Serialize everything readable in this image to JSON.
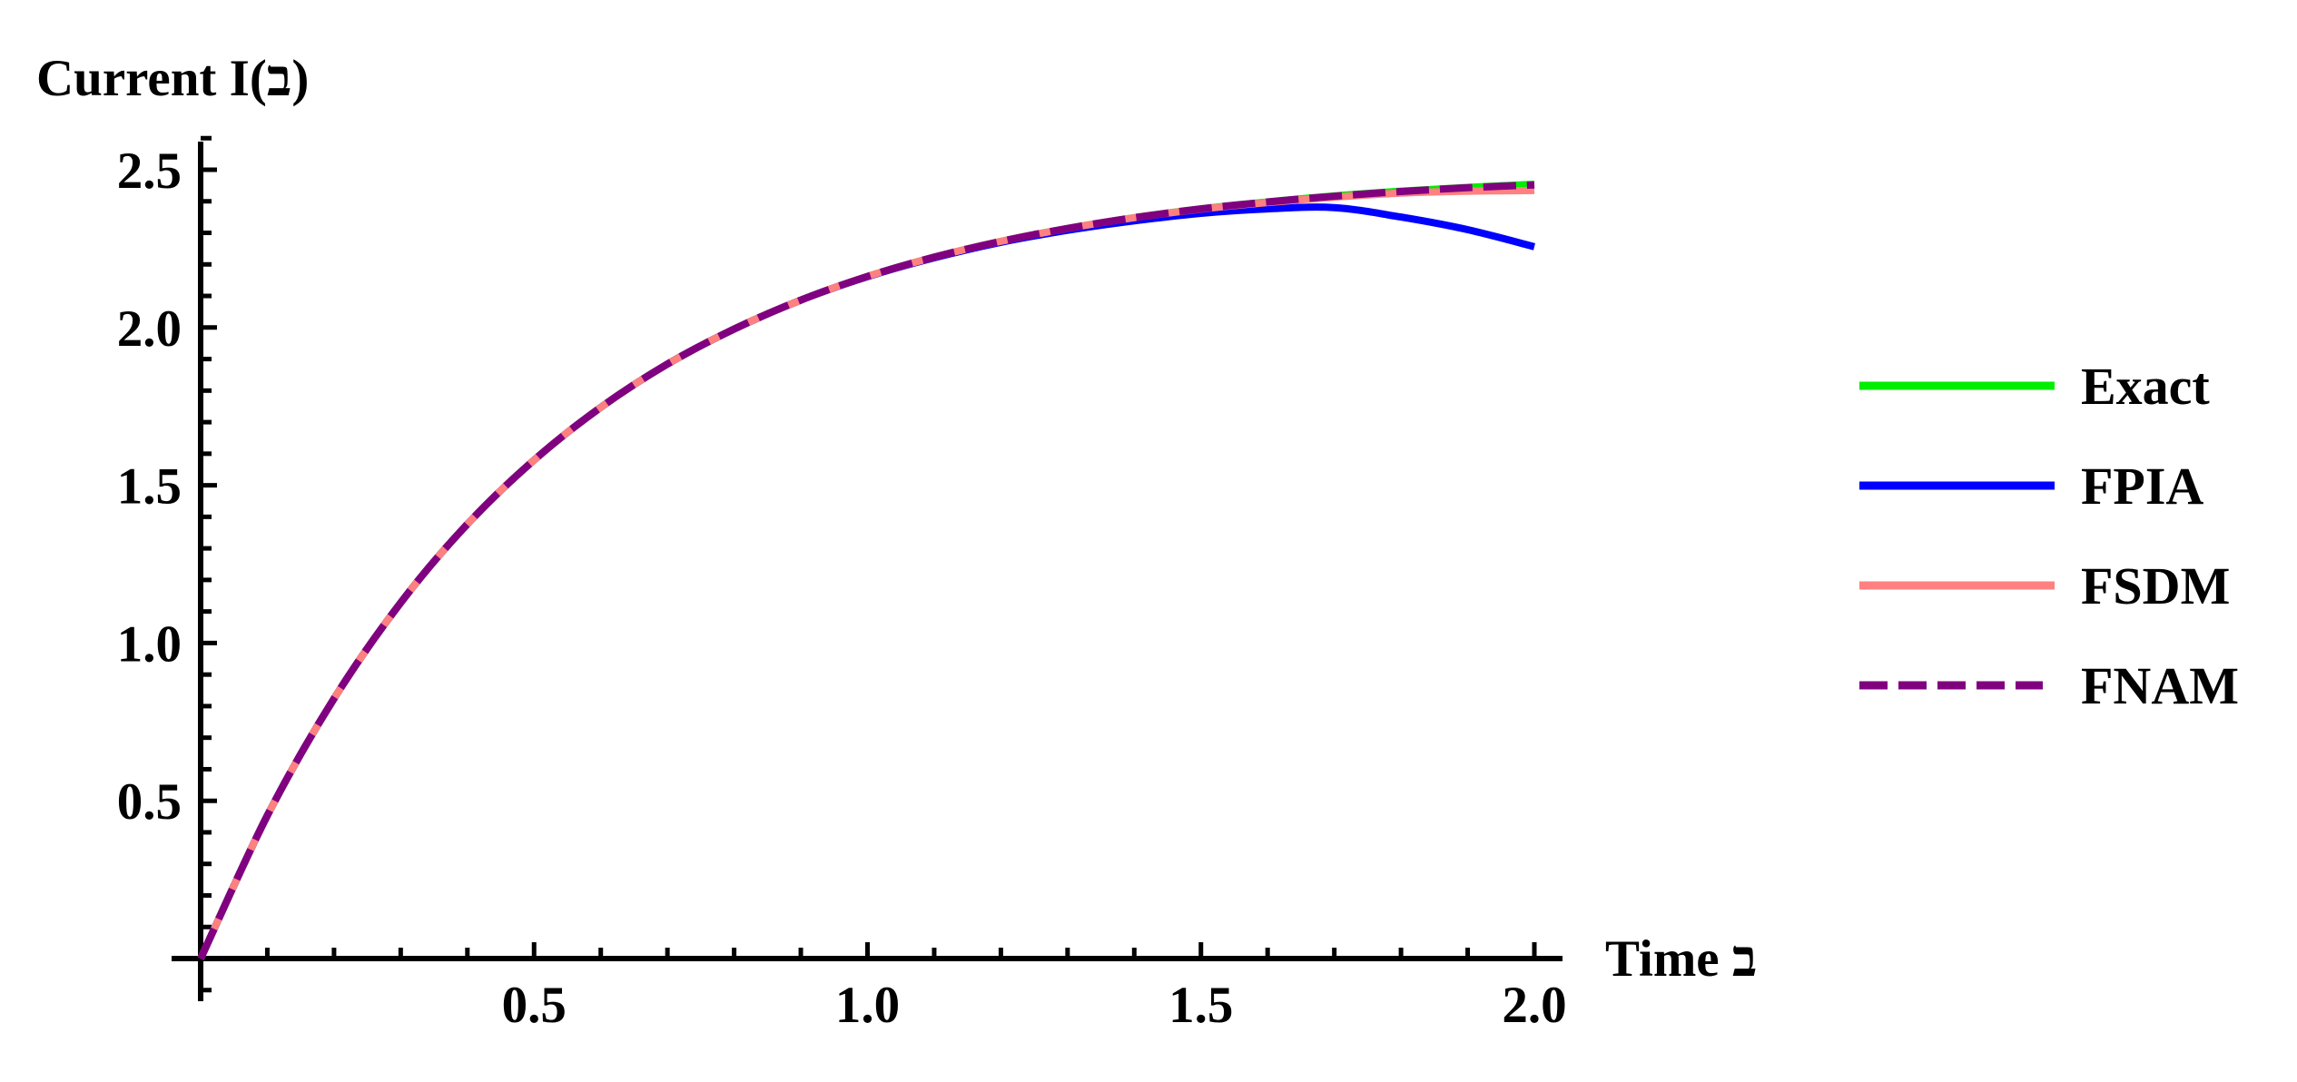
{
  "chart_data": {
    "type": "line",
    "title": "",
    "xlabel": "Time ב",
    "ylabel": "Current I(ב)",
    "xlim": [
      0,
      2.0
    ],
    "ylim": [
      0,
      2.6
    ],
    "x_ticks": [
      "0.5",
      "1.0",
      "1.5",
      "2.0"
    ],
    "x_tick_values": [
      0.5,
      1.0,
      1.5,
      2.0
    ],
    "y_ticks": [
      "0.5",
      "1.0",
      "1.5",
      "2.0",
      "2.5"
    ],
    "y_tick_values": [
      0.5,
      1.0,
      1.5,
      2.0,
      2.5
    ],
    "grid": false,
    "legend_position": "right",
    "x": [
      0,
      0.1,
      0.2,
      0.3,
      0.4,
      0.5,
      0.6,
      0.7,
      0.8,
      0.9,
      1.0,
      1.1,
      1.2,
      1.3,
      1.4,
      1.5,
      1.6,
      1.7,
      1.8,
      1.9,
      2.0
    ],
    "series": [
      {
        "name": "Exact",
        "color": "#00ee00",
        "style": "solid",
        "values": [
          0,
          0.453,
          0.824,
          1.128,
          1.377,
          1.58,
          1.747,
          1.884,
          1.995,
          2.087,
          2.162,
          2.223,
          2.273,
          2.314,
          2.348,
          2.376,
          2.398,
          2.417,
          2.432,
          2.444,
          2.454
        ]
      },
      {
        "name": "FPIA",
        "color": "#0000ff",
        "style": "solid",
        "values": [
          0,
          0.453,
          0.824,
          1.128,
          1.377,
          1.58,
          1.747,
          1.884,
          1.995,
          2.087,
          2.161,
          2.221,
          2.27,
          2.308,
          2.338,
          2.362,
          2.376,
          2.38,
          2.35,
          2.31,
          2.256
        ]
      },
      {
        "name": "FSDM",
        "color": "#ff8080",
        "style": "solid",
        "values": [
          0,
          0.453,
          0.824,
          1.128,
          1.377,
          1.58,
          1.747,
          1.884,
          1.995,
          2.087,
          2.162,
          2.223,
          2.273,
          2.314,
          2.348,
          2.375,
          2.396,
          2.413,
          2.426,
          2.432,
          2.434
        ]
      },
      {
        "name": "FNAM",
        "color": "#800080",
        "style": "dashed",
        "values": [
          0,
          0.453,
          0.824,
          1.128,
          1.377,
          1.58,
          1.747,
          1.884,
          1.995,
          2.087,
          2.162,
          2.223,
          2.273,
          2.314,
          2.348,
          2.376,
          2.398,
          2.416,
          2.431,
          2.443,
          2.452
        ]
      }
    ]
  },
  "axes": {
    "y_title": "Current I(ב)",
    "x_title": "Time ב"
  },
  "legend": {
    "items": [
      {
        "label": "Exact",
        "color": "#00ee00",
        "dashed": false
      },
      {
        "label": "FPIA",
        "color": "#0000ff",
        "dashed": false
      },
      {
        "label": "FSDM",
        "color": "#ff8080",
        "dashed": false
      },
      {
        "label": "FNAM",
        "color": "#800080",
        "dashed": true
      }
    ]
  }
}
